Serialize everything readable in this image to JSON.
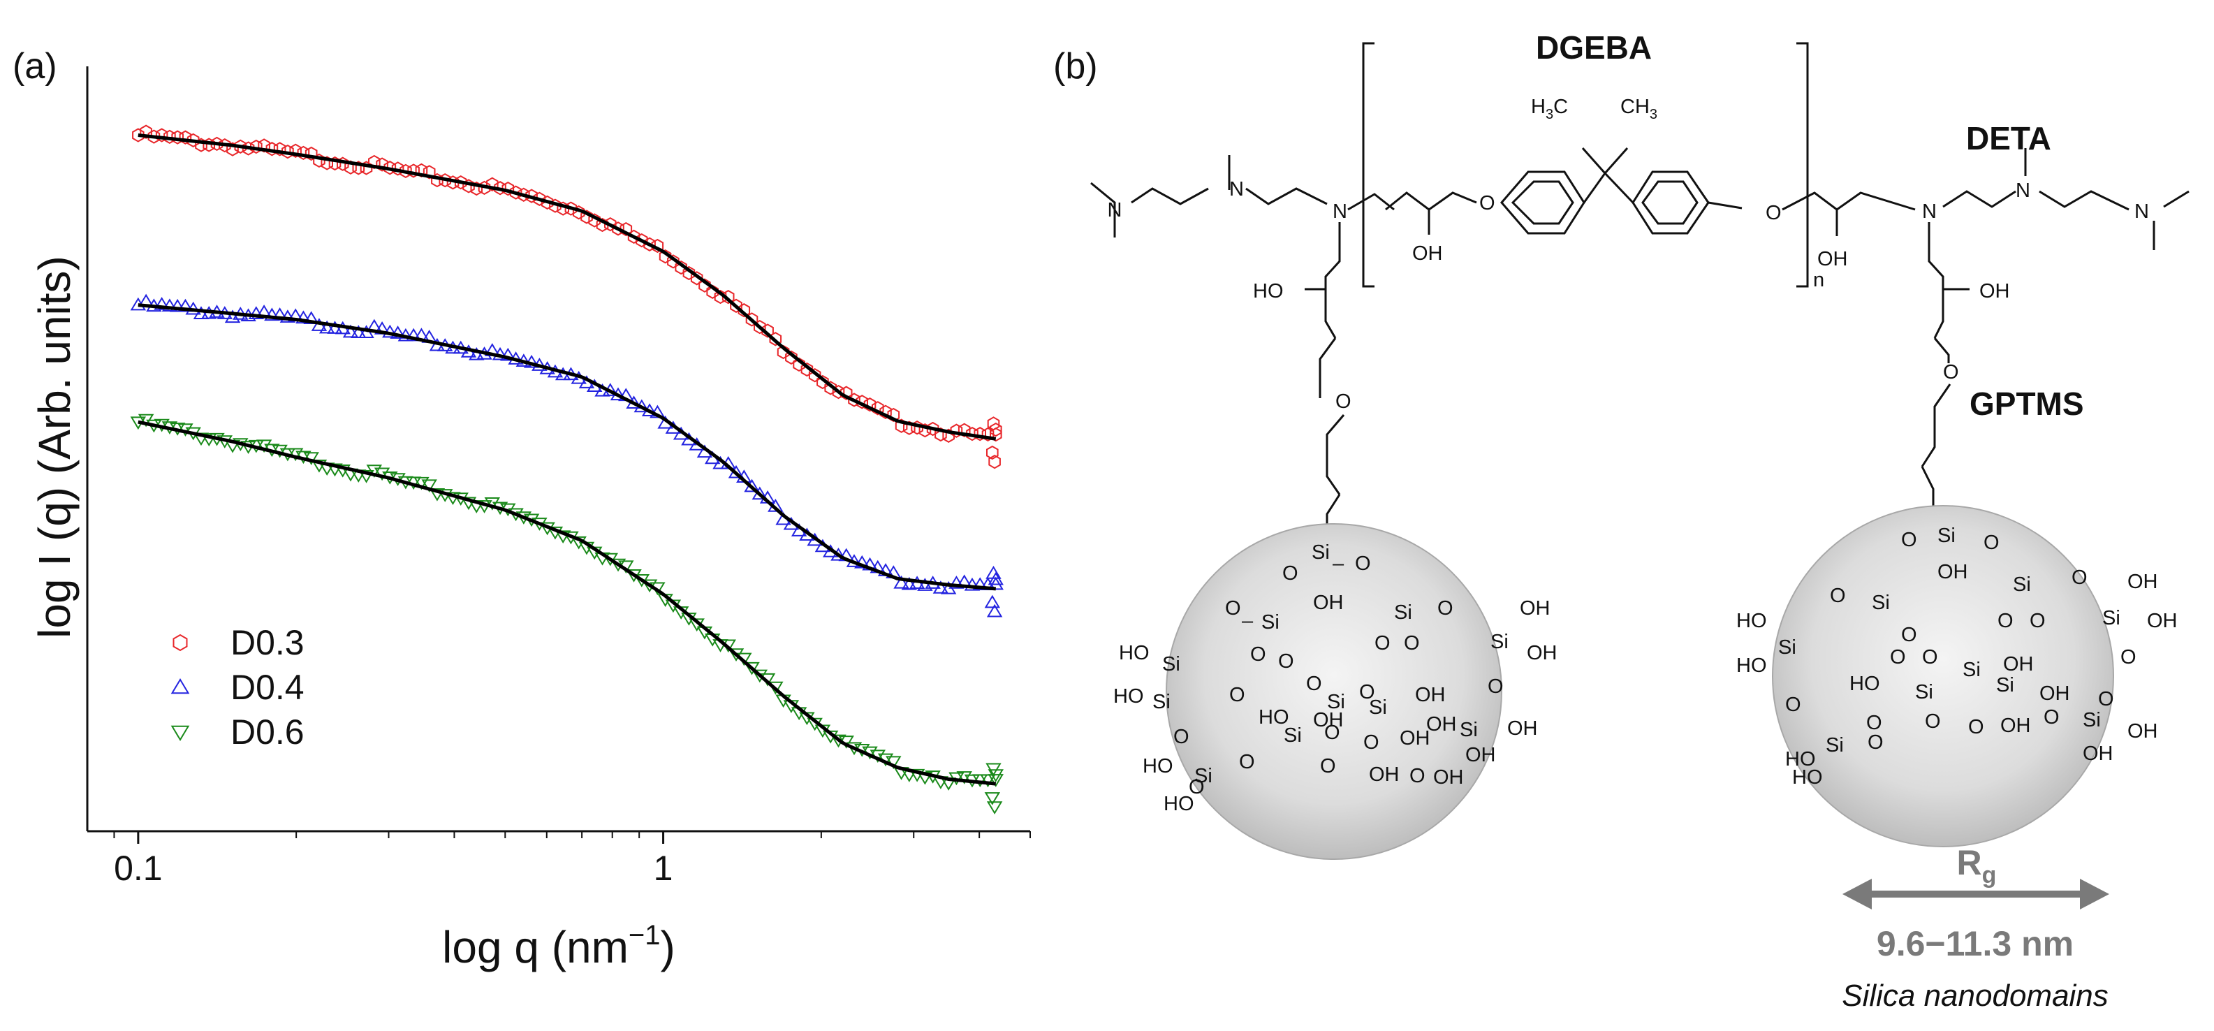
{
  "panel_a": {
    "label": "(a)",
    "xlabel_main": "log q (nm",
    "xlabel_sup": "−1",
    "xlabel_close": ")",
    "ylabel": "log I (q) (Arb. units)"
  },
  "panel_b": {
    "label": "(b)",
    "dgeba": "DGEBA",
    "deta": "DETA",
    "gptms": "GPTMS",
    "rg_main": "R",
    "rg_sub": "g",
    "size_range": "9.6−11.3 nm",
    "caption": "Silica nanodomains",
    "h3c": "H",
    "ch3": "CH",
    "n_repeat": "n"
  },
  "chart_data": {
    "type": "scatter",
    "title": "",
    "xlabel": "log q (nm−1)",
    "ylabel": "log I (q) (Arb. units)",
    "xscale": "log",
    "xlim": [
      0.08,
      5
    ],
    "ylim": [
      0,
      1
    ],
    "x_ticks": [
      0.1,
      1
    ],
    "x_tick_labels": [
      "0.1",
      "1"
    ],
    "legend_position": "bottom-left",
    "series": [
      {
        "name": "D0.3",
        "color": "#e8262a",
        "marker": "hexagon",
        "x": [
          0.1,
          0.15,
          0.2,
          0.3,
          0.5,
          0.7,
          1.0,
          1.3,
          1.7,
          2.2,
          2.8,
          3.5,
          4.3
        ],
        "y": [
          0.91,
          0.897,
          0.885,
          0.866,
          0.838,
          0.811,
          0.758,
          0.701,
          0.631,
          0.57,
          0.536,
          0.522,
          0.513
        ]
      },
      {
        "name": "D0.4",
        "color": "#2323e0",
        "marker": "triangle-up",
        "x": [
          0.1,
          0.15,
          0.2,
          0.3,
          0.5,
          0.7,
          1.0,
          1.3,
          1.7,
          2.2,
          2.8,
          3.5,
          4.3
        ],
        "y": [
          0.688,
          0.677,
          0.669,
          0.651,
          0.62,
          0.594,
          0.54,
          0.483,
          0.412,
          0.357,
          0.33,
          0.322,
          0.317
        ]
      },
      {
        "name": "D0.6",
        "color": "#1a8a1a",
        "marker": "triangle-down",
        "x": [
          0.1,
          0.15,
          0.2,
          0.3,
          0.5,
          0.7,
          1.0,
          1.3,
          1.7,
          2.2,
          2.8,
          3.5,
          4.3
        ],
        "y": [
          0.535,
          0.51,
          0.489,
          0.462,
          0.42,
          0.38,
          0.31,
          0.246,
          0.176,
          0.115,
          0.083,
          0.068,
          0.062
        ]
      }
    ]
  }
}
